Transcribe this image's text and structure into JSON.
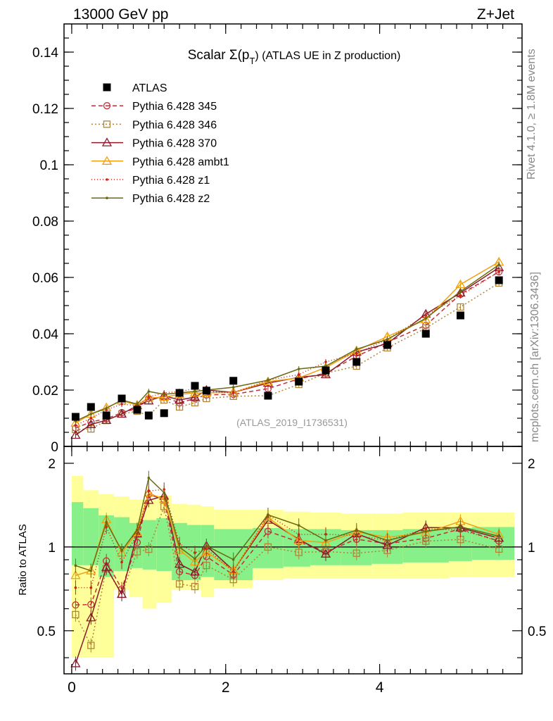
{
  "header": {
    "left": "13000 GeV pp",
    "right": "Z+Jet"
  },
  "side_labels": {
    "rivet": "Rivet 4.1.0, ≥ 1.8M events",
    "mcplots": "mcplots.cern.ch [arXiv:1306.3436]"
  },
  "chart_data": {
    "type": "line",
    "title": "Scalar Σ(p_T) (ATLAS UE in Z production)",
    "title_main": "Scalar Σ(p",
    "title_sub": "T",
    "title_rest": ") (ATLAS UE in Z production)",
    "analysis_id": "(ATLAS_2019_I1736531)",
    "xlabel": "",
    "ylabel": "",
    "ratio_ylabel": "Ratio to ATLAS",
    "xlim": [
      -0.1,
      5.85
    ],
    "ylim": [
      0,
      0.15
    ],
    "ratio_ylim": [
      0.35,
      2.3
    ],
    "x_ticks": [
      "0",
      "2",
      "4"
    ],
    "x_tick_values": [
      0,
      2,
      4
    ],
    "y_ticks": [
      "0",
      "0.02",
      "0.04",
      "0.06",
      "0.08",
      "0.1",
      "0.12",
      "0.14"
    ],
    "y_tick_values": [
      0,
      0.02,
      0.04,
      0.06,
      0.08,
      0.1,
      0.12,
      0.14
    ],
    "ratio_ticks": [
      "0.5",
      "1",
      "2"
    ],
    "ratio_tick_values": [
      0.5,
      1,
      2
    ],
    "x": [
      0.05,
      0.25,
      0.45,
      0.65,
      0.85,
      1.0,
      1.2,
      1.4,
      1.6,
      1.75,
      2.1,
      2.55,
      2.95,
      3.3,
      3.7,
      4.1,
      4.6,
      5.05,
      5.55
    ],
    "data": {
      "name": "ATLAS",
      "values": [
        0.0105,
        0.014,
        0.011,
        0.017,
        0.013,
        0.011,
        0.0118,
        0.019,
        0.0215,
        0.0198,
        0.0233,
        0.018,
        0.023,
        0.027,
        0.03,
        0.036,
        0.04,
        0.0465,
        0.059
      ]
    },
    "series": [
      {
        "name": "Pythia 6.428 345",
        "color": "#c0303a",
        "dash": "6,4",
        "marker": "circle",
        "values": [
          0.0065,
          0.0087,
          0.0098,
          0.012,
          0.0135,
          0.017,
          0.0175,
          0.0155,
          0.017,
          0.0183,
          0.0185,
          0.0205,
          0.024,
          0.026,
          0.032,
          0.037,
          0.043,
          0.054,
          0.062
        ]
      },
      {
        "name": "Pythia 6.428 346",
        "color": "#b0853a",
        "dash": "2,3",
        "marker": "square",
        "values": [
          0.006,
          0.0062,
          0.0092,
          0.0115,
          0.0125,
          0.0108,
          0.0165,
          0.014,
          0.0155,
          0.017,
          0.0178,
          0.018,
          0.022,
          0.026,
          0.0285,
          0.035,
          0.042,
          0.0495,
          0.058
        ]
      },
      {
        "name": "Pythia 6.428 370",
        "color": "#8a1a2a",
        "dash": "",
        "marker": "triangle",
        "values": [
          0.004,
          0.0078,
          0.0093,
          0.0115,
          0.0145,
          0.0162,
          0.018,
          0.0165,
          0.0175,
          0.02,
          0.0192,
          0.0225,
          0.0245,
          0.0255,
          0.0335,
          0.0365,
          0.047,
          0.0545,
          0.0635
        ]
      },
      {
        "name": "Pythia 6.428 ambt1",
        "color": "#f0a010",
        "dash": "",
        "marker": "triangle",
        "values": [
          0.0083,
          0.0115,
          0.0138,
          0.0162,
          0.0147,
          0.0172,
          0.0175,
          0.0185,
          0.019,
          0.019,
          0.0192,
          0.023,
          0.0243,
          0.028,
          0.034,
          0.039,
          0.045,
          0.0575,
          0.0655
        ]
      },
      {
        "name": "Pythia 6.428 z1",
        "color": "#cc2010",
        "dash": "1,3",
        "marker": "dot",
        "values": [
          0.0075,
          0.01,
          0.013,
          0.015,
          0.0145,
          0.0175,
          0.019,
          0.0195,
          0.0205,
          0.0195,
          0.019,
          0.0235,
          0.0255,
          0.03,
          0.033,
          0.038,
          0.0465,
          0.0535,
          0.062
        ]
      },
      {
        "name": "Pythia 6.428 z2",
        "color": "#6b6a10",
        "dash": "",
        "marker": "dot",
        "values": [
          0.009,
          0.0115,
          0.0135,
          0.0165,
          0.015,
          0.0195,
          0.0185,
          0.019,
          0.0195,
          0.02,
          0.021,
          0.0235,
          0.0275,
          0.0285,
          0.0345,
          0.038,
          0.0455,
          0.055,
          0.0645
        ]
      }
    ],
    "uncertainty_bands": {
      "x_edges": [
        0.0,
        0.15,
        0.35,
        0.55,
        0.75,
        0.92,
        1.1,
        1.3,
        1.5,
        1.68,
        1.85,
        2.35,
        2.75,
        3.1,
        3.5,
        3.9,
        4.3,
        4.9,
        5.2,
        5.75
      ],
      "inner_low": [
        0.86,
        0.86,
        0.78,
        0.82,
        0.84,
        0.83,
        0.82,
        0.76,
        0.76,
        0.78,
        0.76,
        0.84,
        0.85,
        0.86,
        0.86,
        0.87,
        0.88,
        0.89,
        0.9
      ],
      "inner_high": [
        1.45,
        1.38,
        1.3,
        1.28,
        1.22,
        1.25,
        1.27,
        1.22,
        1.2,
        1.2,
        1.16,
        1.17,
        1.16,
        1.16,
        1.15,
        1.15,
        1.16,
        1.17,
        1.18
      ],
      "outer_low": [
        0.4,
        0.4,
        0.4,
        0.7,
        0.66,
        0.6,
        0.63,
        0.7,
        0.7,
        0.66,
        0.71,
        0.76,
        0.77,
        0.77,
        0.77,
        0.77,
        0.77,
        0.78,
        0.78
      ],
      "outer_high": [
        1.8,
        1.6,
        1.55,
        1.52,
        1.48,
        1.48,
        1.53,
        1.43,
        1.42,
        1.4,
        1.36,
        1.36,
        1.34,
        1.33,
        1.32,
        1.32,
        1.33,
        1.33,
        1.33
      ],
      "inner_color": "#88f088",
      "outer_color": "#ffff99"
    }
  }
}
